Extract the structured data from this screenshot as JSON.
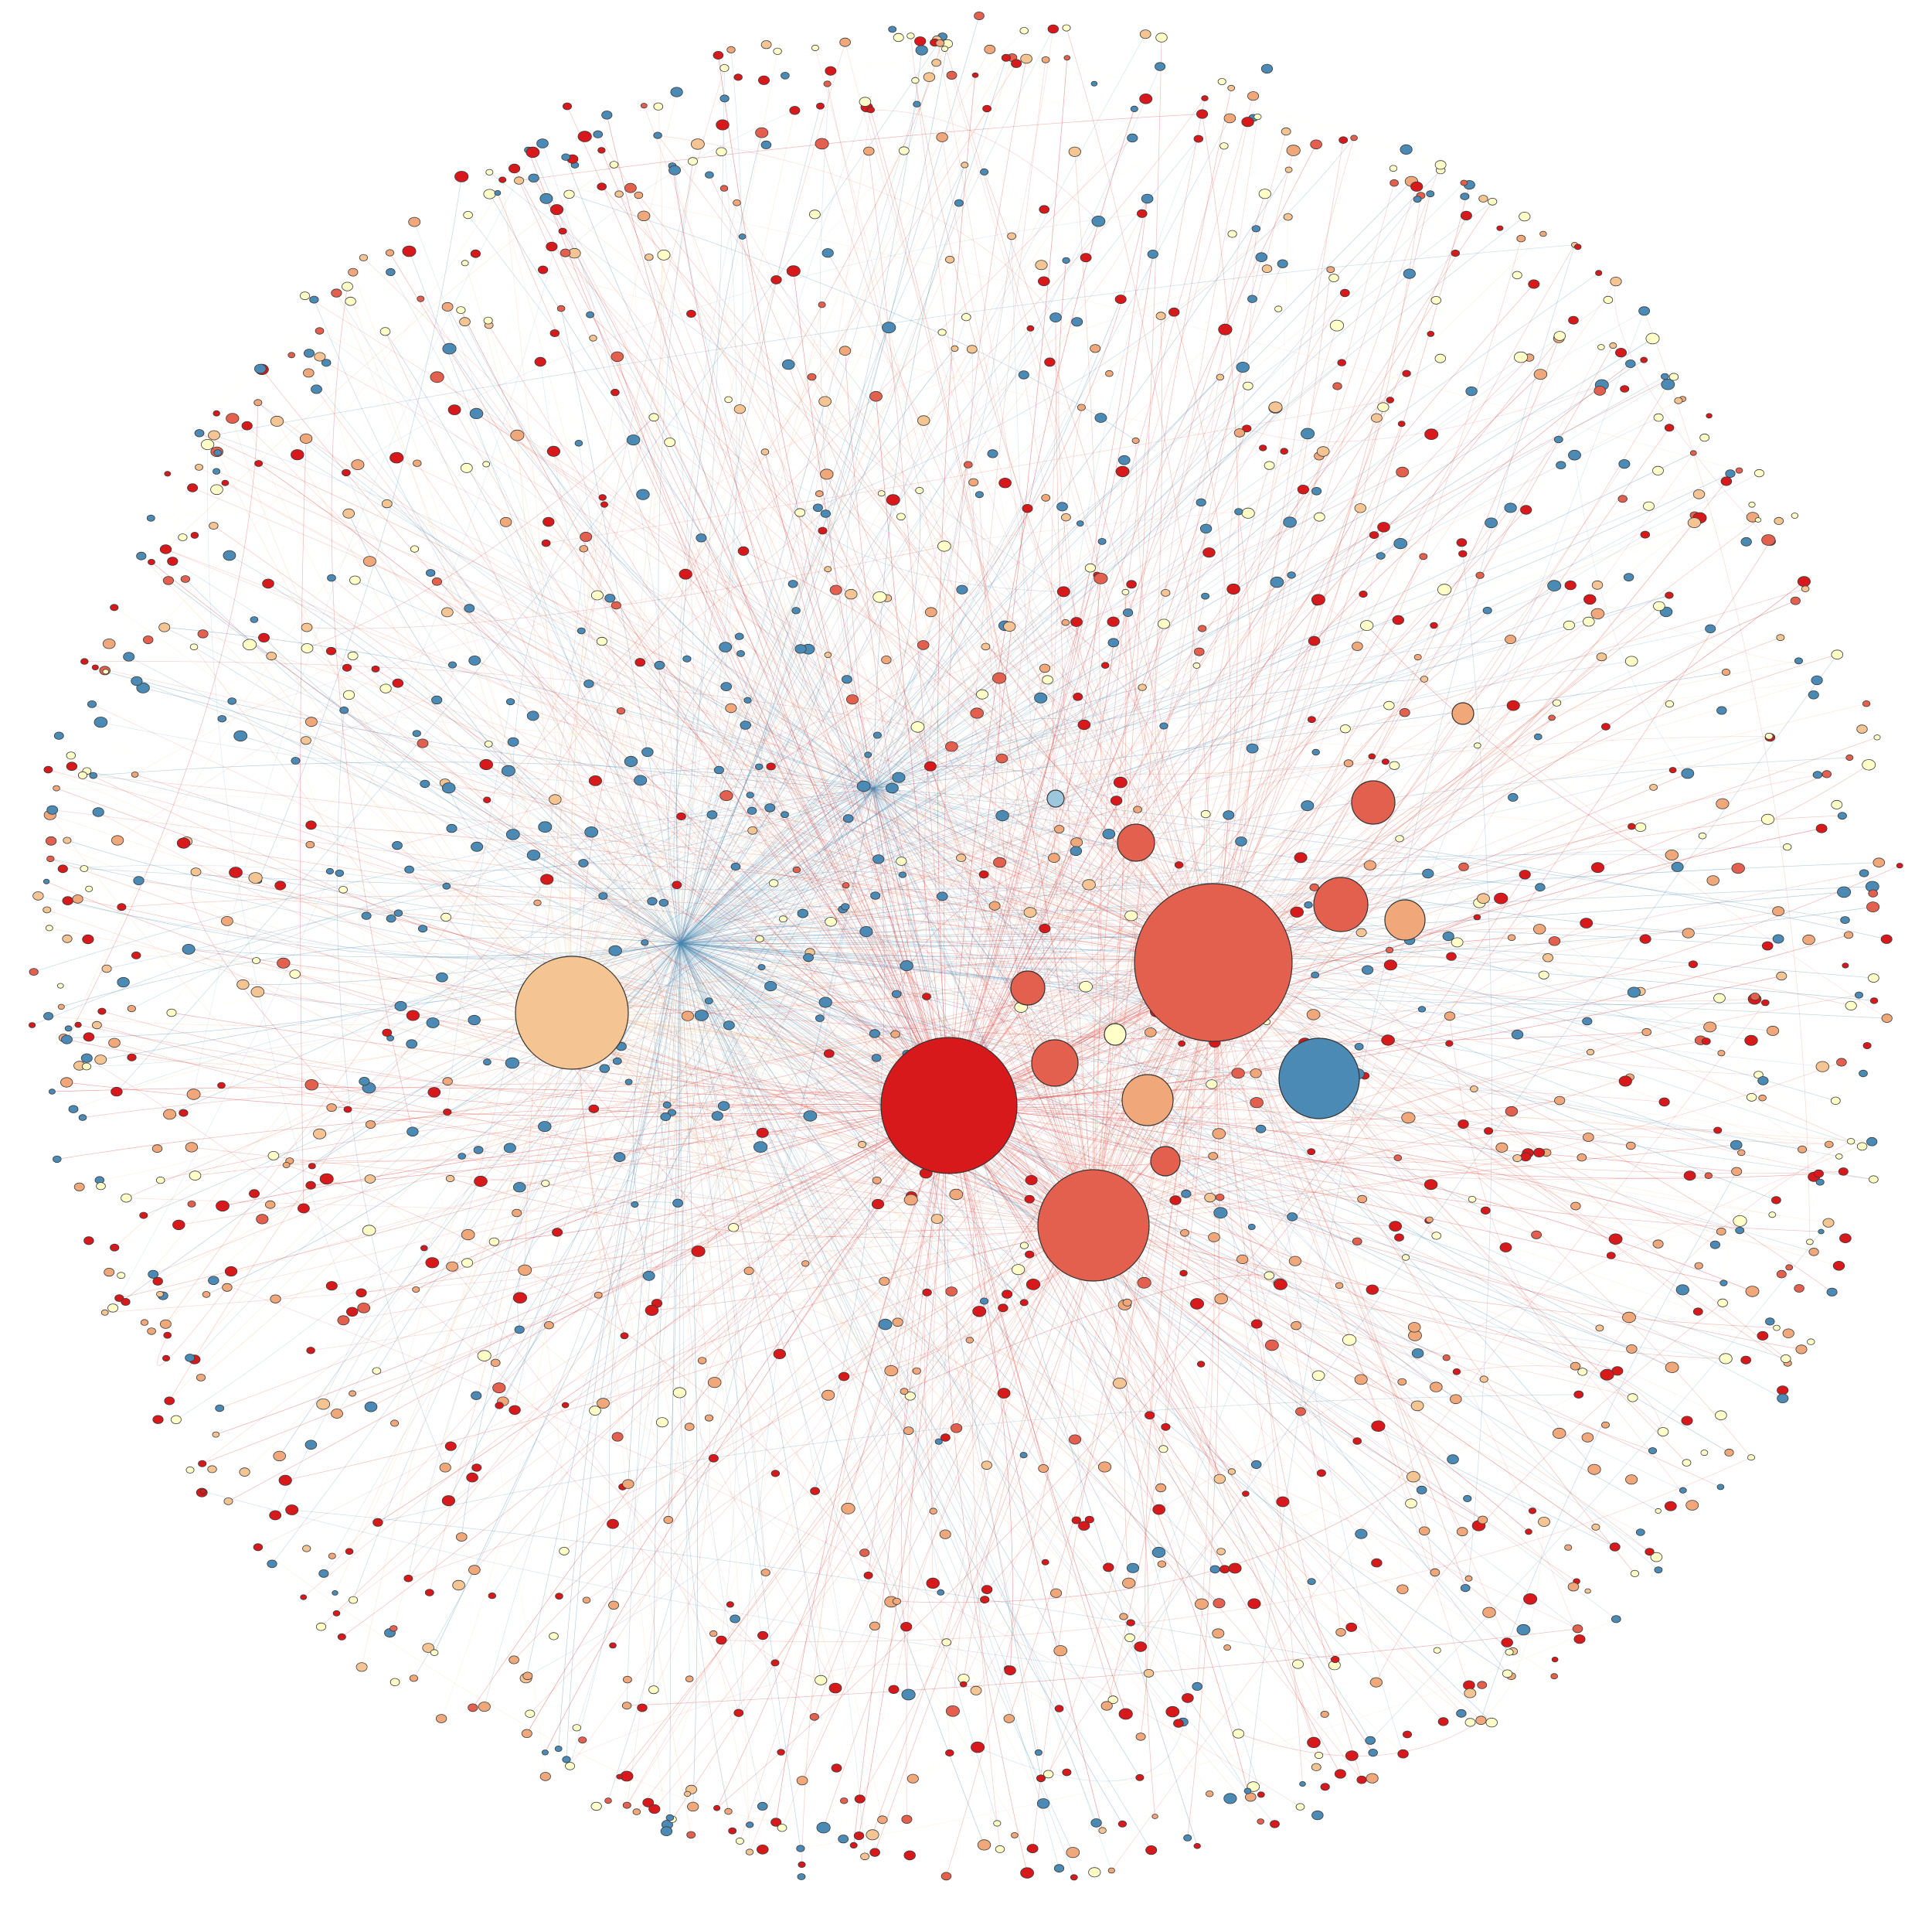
{
  "colors": {
    "red_dark": "#d7191c",
    "red_mid": "#e4604e",
    "orange_mid": "#f0a87a",
    "peach": "#f4c492",
    "cream": "#ffffc8",
    "blue": "#4a8ab5",
    "blue_light": "#9cc7dc",
    "node_stroke": "#333333",
    "background": "#ffffff"
  },
  "graph": {
    "description_visible": "",
    "hubs": [
      {
        "id": "hub-1",
        "label": "",
        "color": "red_dark"
      },
      {
        "id": "hub-2",
        "label": "",
        "color": "red_mid"
      },
      {
        "id": "hub-3",
        "label": "",
        "color": "red_mid"
      },
      {
        "id": "hub-4",
        "label": "",
        "color": "peach"
      },
      {
        "id": "hub-5",
        "label": "",
        "color": "blue"
      },
      {
        "id": "hub-6",
        "label": "",
        "color": "orange_mid"
      },
      {
        "id": "hub-7",
        "label": "",
        "color": "red_mid"
      },
      {
        "id": "hub-8",
        "label": "",
        "color": "red_mid"
      },
      {
        "id": "hub-9",
        "label": "",
        "color": "red_mid"
      },
      {
        "id": "hub-10",
        "label": "",
        "color": "orange_mid"
      },
      {
        "id": "hub-11",
        "label": "",
        "color": "red_mid"
      },
      {
        "id": "hub-12",
        "label": "",
        "color": "red_mid"
      },
      {
        "id": "hub-13",
        "label": "",
        "color": "red_mid"
      },
      {
        "id": "hub-14",
        "label": "",
        "color": "orange_mid"
      },
      {
        "id": "hub-15",
        "label": "",
        "color": "cream"
      },
      {
        "id": "hub-16",
        "label": "",
        "color": "blue_light"
      }
    ]
  }
}
